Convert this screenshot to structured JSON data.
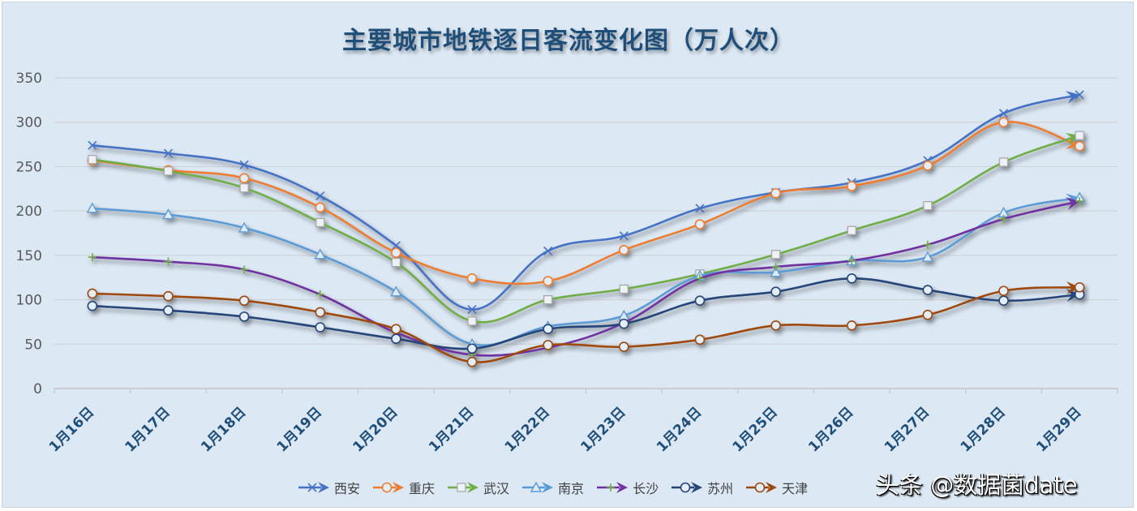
{
  "chart_data": {
    "type": "line",
    "title": "主要城市地铁逐日客流变化图（万人次）",
    "xlabel": "",
    "ylabel": "",
    "ylim": [
      0,
      350
    ],
    "yticks": [
      0,
      50,
      100,
      150,
      200,
      250,
      300,
      350
    ],
    "grid": true,
    "legend_position": "bottom",
    "categories": [
      "1月16日",
      "1月17日",
      "1月18日",
      "1月19日",
      "1月20日",
      "1月21日",
      "1月22日",
      "1月23日",
      "1月24日",
      "1月25日",
      "1月26日",
      "1月27日",
      "1月28日",
      "1月29日"
    ],
    "series": [
      {
        "name": "西安",
        "color": "#4472c4",
        "marker": "x",
        "values": [
          274,
          265,
          252,
          217,
          161,
          89,
          155,
          172,
          203,
          221,
          232,
          257,
          310,
          331
        ]
      },
      {
        "name": "重庆",
        "color": "#ed7d31",
        "marker": "circle",
        "values": [
          257,
          246,
          237,
          204,
          153,
          124,
          121,
          156,
          185,
          220,
          228,
          251,
          300,
          273
        ]
      },
      {
        "name": "武汉",
        "color": "#70ad47",
        "marker": "square",
        "values": [
          258,
          245,
          226,
          187,
          142,
          76,
          100,
          112,
          129,
          151,
          178,
          206,
          255,
          285
        ]
      },
      {
        "name": "南京",
        "color": "#5b9bd5",
        "marker": "triangle",
        "values": [
          203,
          196,
          181,
          151,
          109,
          50,
          70,
          82,
          127,
          131,
          144,
          148,
          198,
          215
        ]
      },
      {
        "name": "长沙",
        "color": "#7030a0",
        "marker": "plus",
        "values": [
          148,
          143,
          134,
          106,
          63,
          38,
          46,
          74,
          124,
          137,
          144,
          162,
          191,
          211
        ]
      },
      {
        "name": "苏州",
        "color": "#264478",
        "marker": "circle",
        "values": [
          93,
          88,
          81,
          69,
          56,
          45,
          67,
          73,
          99,
          109,
          124,
          111,
          99,
          106
        ]
      },
      {
        "name": "天津",
        "color": "#9e480e",
        "marker": "circle",
        "values": [
          107,
          104,
          99,
          86,
          67,
          30,
          49,
          47,
          55,
          71,
          71,
          83,
          110,
          114
        ]
      }
    ]
  },
  "watermark": "头条 @数据菌date"
}
